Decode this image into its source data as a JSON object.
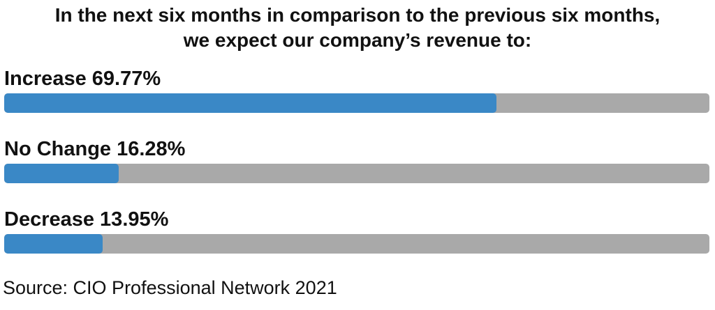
{
  "title": {
    "line1": "In the next six months in comparison to the previous six months,",
    "line2": "we expect our company’s revenue to:"
  },
  "chart_data": {
    "type": "bar",
    "orientation": "horizontal",
    "categories": [
      "Increase",
      "No Change",
      "Decrease"
    ],
    "values": [
      69.77,
      16.28,
      13.95
    ],
    "labels": [
      "Increase 69.77%",
      "No Change 16.28%",
      "Decrease 13.95%"
    ],
    "unit": "%",
    "xlim": [
      0,
      100
    ],
    "colors": {
      "fill": "#3a88c6",
      "track": "#a9a9a9"
    }
  },
  "source": "Source: CIO Professional Network 2021"
}
